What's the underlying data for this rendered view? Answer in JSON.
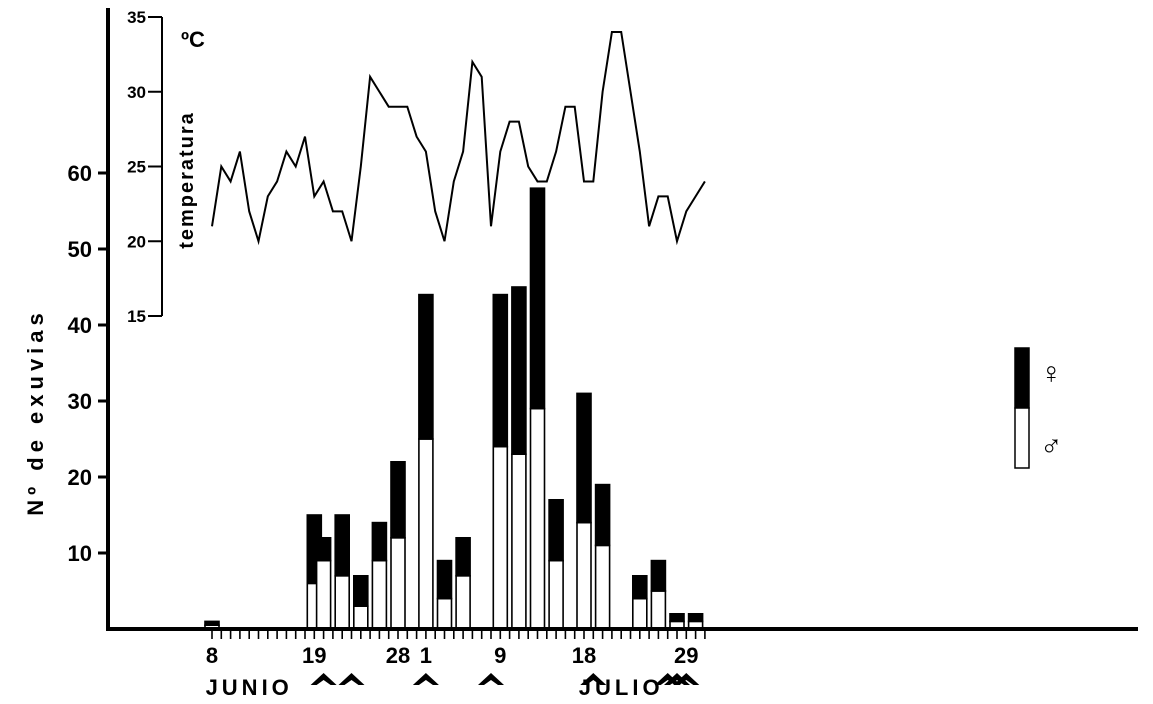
{
  "chart_data": {
    "type": "bar",
    "subtype": "stacked bar with overlaid line",
    "ylabel": "Nº de exuvias",
    "y_ticks": [
      "10",
      "20",
      "30",
      "40",
      "50",
      "60"
    ],
    "ylim": [
      0,
      65
    ],
    "x_tick_labels": [
      {
        "day": 8,
        "label": "8"
      },
      {
        "day": 19,
        "label": "19"
      },
      {
        "day": 28,
        "label": "28"
      },
      {
        "day": 31,
        "label": "1"
      },
      {
        "day": 39,
        "label": "9"
      },
      {
        "day": 48,
        "label": "18"
      },
      {
        "day": 59,
        "label": "29"
      }
    ],
    "month_labels": [
      {
        "day": 12,
        "label": "JUNIO"
      },
      {
        "day": 52,
        "label": "JULIO"
      }
    ],
    "legend": [
      {
        "name": "♀",
        "color": "#000000"
      },
      {
        "name": "♂",
        "color": "#ffffff"
      }
    ],
    "legend_position": "right",
    "series": [
      {
        "name": "♂",
        "color": "#ffffff",
        "points": [
          {
            "day": 8,
            "value": 0.5
          },
          {
            "day": 19,
            "value": 6
          },
          {
            "day": 20,
            "value": 9
          },
          {
            "day": 22,
            "value": 7
          },
          {
            "day": 24,
            "value": 3
          },
          {
            "day": 26,
            "value": 9
          },
          {
            "day": 28,
            "value": 12
          },
          {
            "day": 31,
            "value": 25
          },
          {
            "day": 33,
            "value": 4
          },
          {
            "day": 35,
            "value": 7
          },
          {
            "day": 39,
            "value": 24
          },
          {
            "day": 41,
            "value": 23
          },
          {
            "day": 43,
            "value": 29
          },
          {
            "day": 45,
            "value": 9
          },
          {
            "day": 48,
            "value": 14
          },
          {
            "day": 50,
            "value": 11
          },
          {
            "day": 54,
            "value": 4
          },
          {
            "day": 56,
            "value": 5
          },
          {
            "day": 58,
            "value": 1
          },
          {
            "day": 60,
            "value": 1
          }
        ]
      },
      {
        "name": "♀",
        "color": "#000000",
        "points": [
          {
            "day": 8,
            "value": 0.5
          },
          {
            "day": 19,
            "value": 9
          },
          {
            "day": 20,
            "value": 3
          },
          {
            "day": 22,
            "value": 8
          },
          {
            "day": 24,
            "value": 4
          },
          {
            "day": 26,
            "value": 5
          },
          {
            "day": 28,
            "value": 10
          },
          {
            "day": 31,
            "value": 19
          },
          {
            "day": 33,
            "value": 5
          },
          {
            "day": 35,
            "value": 5
          },
          {
            "day": 39,
            "value": 20
          },
          {
            "day": 41,
            "value": 22
          },
          {
            "day": 43,
            "value": 29
          },
          {
            "day": 45,
            "value": 8
          },
          {
            "day": 48,
            "value": 17
          },
          {
            "day": 50,
            "value": 8
          },
          {
            "day": 54,
            "value": 3
          },
          {
            "day": 56,
            "value": 4
          },
          {
            "day": 58,
            "value": 1
          },
          {
            "day": 60,
            "value": 1
          }
        ]
      }
    ],
    "temperature": {
      "ylabel": "temperatura",
      "unit_label": "ºC",
      "y_ticks": [
        "15",
        "20",
        "25",
        "30",
        "35"
      ],
      "ylim": [
        15,
        35
      ],
      "line": [
        {
          "day": 8,
          "value": 21
        },
        {
          "day": 9,
          "value": 25
        },
        {
          "day": 10,
          "value": 24
        },
        {
          "day": 11,
          "value": 26
        },
        {
          "day": 12,
          "value": 22
        },
        {
          "day": 13,
          "value": 20
        },
        {
          "day": 14,
          "value": 23
        },
        {
          "day": 15,
          "value": 24
        },
        {
          "day": 16,
          "value": 26
        },
        {
          "day": 17,
          "value": 25
        },
        {
          "day": 18,
          "value": 27
        },
        {
          "day": 19,
          "value": 23
        },
        {
          "day": 20,
          "value": 24
        },
        {
          "day": 21,
          "value": 22
        },
        {
          "day": 22,
          "value": 22
        },
        {
          "day": 23,
          "value": 20
        },
        {
          "day": 24,
          "value": 25
        },
        {
          "day": 25,
          "value": 31
        },
        {
          "day": 26,
          "value": 30
        },
        {
          "day": 27,
          "value": 29
        },
        {
          "day": 28,
          "value": 29
        },
        {
          "day": 29,
          "value": 29
        },
        {
          "day": 30,
          "value": 27
        },
        {
          "day": 31,
          "value": 26
        },
        {
          "day": 32,
          "value": 22
        },
        {
          "day": 33,
          "value": 20
        },
        {
          "day": 34,
          "value": 24
        },
        {
          "day": 35,
          "value": 26
        },
        {
          "day": 36,
          "value": 32
        },
        {
          "day": 37,
          "value": 31
        },
        {
          "day": 38,
          "value": 21
        },
        {
          "day": 39,
          "value": 26
        },
        {
          "day": 40,
          "value": 28
        },
        {
          "day": 41,
          "value": 28
        },
        {
          "day": 42,
          "value": 25
        },
        {
          "day": 43,
          "value": 24
        },
        {
          "day": 44,
          "value": 24
        },
        {
          "day": 45,
          "value": 26
        },
        {
          "day": 46,
          "value": 29
        },
        {
          "day": 47,
          "value": 29
        },
        {
          "day": 48,
          "value": 24
        },
        {
          "day": 49,
          "value": 24
        },
        {
          "day": 50,
          "value": 30
        },
        {
          "day": 51,
          "value": 34
        },
        {
          "day": 52,
          "value": 34
        },
        {
          "day": 53,
          "value": 30
        },
        {
          "day": 54,
          "value": 26
        },
        {
          "day": 55,
          "value": 21
        },
        {
          "day": 56,
          "value": 23
        },
        {
          "day": 57,
          "value": 23
        },
        {
          "day": 58,
          "value": 20
        },
        {
          "day": 59,
          "value": 22
        },
        {
          "day": 60,
          "value": 23
        },
        {
          "day": 61,
          "value": 24
        }
      ]
    },
    "arrow_days": [
      20,
      23,
      31,
      38,
      49,
      57,
      58,
      59
    ],
    "grid": false
  }
}
